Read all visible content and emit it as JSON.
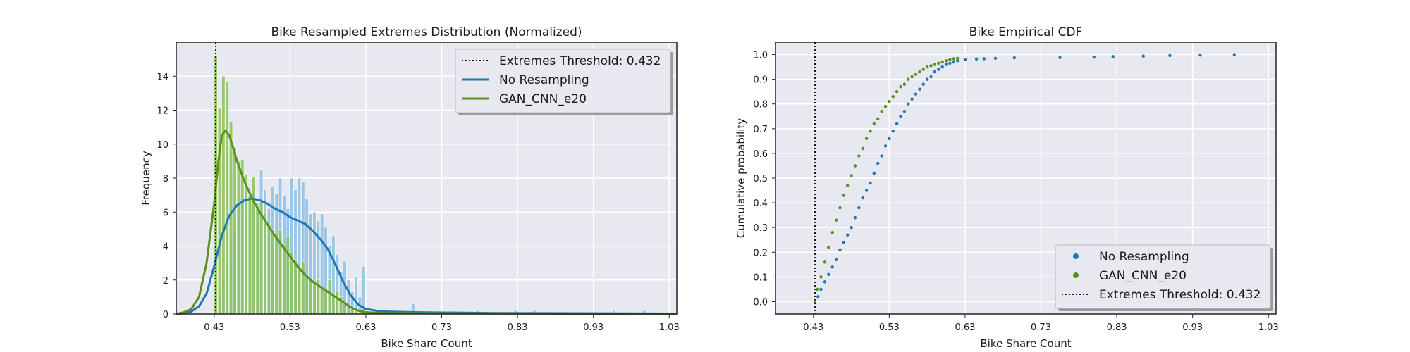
{
  "colors": {
    "background": "#ffffff",
    "plot_background": "#e8e8f0",
    "grid": "#ffffff",
    "no_resampling": "#1f77b4",
    "no_resampling_bar": "#86bde6",
    "gan": "#5e8f1c",
    "gan_bar": "#8cc25a",
    "threshold": "#111111"
  },
  "chart_data": [
    {
      "type": "bar",
      "title": "Bike Resampled Extremes Distribution (Normalized)",
      "xlabel": "Bike Share Count",
      "ylabel": "Frequency",
      "xlim": [
        0.38,
        1.04
      ],
      "ylim": [
        0,
        16
      ],
      "xticks": [
        "0.43",
        "0.53",
        "0.63",
        "0.73",
        "0.83",
        "0.93",
        "1.03"
      ],
      "yticks": [
        "0",
        "2",
        "4",
        "6",
        "8",
        "10",
        "12",
        "14"
      ],
      "grid": true,
      "legend_position": "top-right",
      "legend": [
        {
          "label": "Extremes Threshold: 0.432",
          "style": "dotted",
          "color": "#111111"
        },
        {
          "label": "No Resampling",
          "style": "line",
          "color": "#1f77b4"
        },
        {
          "label": "GAN_CNN_e20",
          "style": "line",
          "color": "#5e8f1c"
        }
      ],
      "threshold": 0.432,
      "series": [
        {
          "name": "No Resampling",
          "kind": "histogram",
          "bin_width": 0.005,
          "x": [
            0.435,
            0.44,
            0.445,
            0.45,
            0.455,
            0.46,
            0.465,
            0.47,
            0.475,
            0.48,
            0.485,
            0.49,
            0.495,
            0.5,
            0.505,
            0.51,
            0.515,
            0.52,
            0.525,
            0.53,
            0.535,
            0.54,
            0.545,
            0.55,
            0.555,
            0.56,
            0.565,
            0.57,
            0.575,
            0.58,
            0.585,
            0.59,
            0.595,
            0.6,
            0.605,
            0.61,
            0.615,
            0.62,
            0.625,
            0.63,
            0.69,
            0.775,
            0.825,
            0.85,
            0.955,
            0.995
          ],
          "values": [
            1.0,
            2.0,
            3.0,
            4.3,
            5.0,
            6.2,
            6.8,
            6.0,
            7.0,
            7.2,
            6.5,
            8.5,
            7.3,
            6.2,
            7.5,
            7.1,
            8.0,
            7.0,
            6.2,
            8.0,
            7.3,
            8.0,
            7.8,
            6.8,
            5.9,
            6.0,
            5.5,
            5.9,
            5.1,
            4.0,
            4.6,
            3.5,
            2.5,
            3.1,
            2.0,
            1.3,
            2.2,
            1.0,
            2.8,
            0.2,
            0.6,
            0.2,
            0.2,
            0.2,
            0.2,
            0.2
          ]
        },
        {
          "name": "GAN_CNN_e20",
          "kind": "histogram",
          "bin_width": 0.005,
          "x": [
            0.43,
            0.435,
            0.44,
            0.445,
            0.45,
            0.455,
            0.46,
            0.465,
            0.47,
            0.475,
            0.48,
            0.485,
            0.49,
            0.495,
            0.5,
            0.505,
            0.51,
            0.515,
            0.52,
            0.525,
            0.53,
            0.535,
            0.54,
            0.545,
            0.55,
            0.555,
            0.56,
            0.565,
            0.57,
            0.575,
            0.58,
            0.585,
            0.59,
            0.595,
            0.6,
            0.605,
            0.61,
            0.615,
            0.62
          ],
          "values": [
            15.2,
            12.1,
            14.0,
            13.7,
            11.3,
            9.8,
            9.0,
            9.1,
            8.2,
            7.0,
            8.1,
            6.4,
            6.6,
            6.0,
            5.3,
            5.0,
            4.7,
            5.0,
            4.1,
            4.6,
            3.6,
            3.2,
            2.6,
            3.1,
            2.2,
            2.0,
            1.8,
            2.0,
            1.6,
            1.4,
            2.0,
            1.1,
            1.4,
            1.0,
            0.6,
            0.5,
            0.3,
            0.2,
            0.1
          ]
        },
        {
          "name": "No Resampling",
          "kind": "kde",
          "x": [
            0.38,
            0.39,
            0.4,
            0.41,
            0.42,
            0.43,
            0.44,
            0.45,
            0.46,
            0.47,
            0.48,
            0.49,
            0.5,
            0.51,
            0.52,
            0.53,
            0.54,
            0.55,
            0.56,
            0.57,
            0.58,
            0.59,
            0.6,
            0.61,
            0.62,
            0.63,
            0.65,
            0.7,
            0.8,
            0.9,
            1.04
          ],
          "values": [
            0.0,
            0.05,
            0.15,
            0.45,
            1.2,
            2.8,
            4.6,
            5.8,
            6.4,
            6.7,
            6.8,
            6.7,
            6.5,
            6.2,
            6.0,
            5.7,
            5.5,
            5.3,
            4.9,
            4.4,
            3.8,
            2.9,
            1.9,
            1.1,
            0.55,
            0.3,
            0.15,
            0.1,
            0.05,
            0.04,
            0.02
          ]
        },
        {
          "name": "GAN_CNN_e20",
          "kind": "kde",
          "x": [
            0.38,
            0.39,
            0.4,
            0.41,
            0.42,
            0.43,
            0.435,
            0.44,
            0.445,
            0.45,
            0.455,
            0.46,
            0.47,
            0.48,
            0.49,
            0.5,
            0.51,
            0.52,
            0.53,
            0.54,
            0.55,
            0.56,
            0.57,
            0.58,
            0.59,
            0.6,
            0.61,
            0.62,
            0.63,
            0.65,
            1.04
          ],
          "values": [
            0.0,
            0.1,
            0.3,
            1.0,
            3.0,
            6.5,
            8.8,
            10.5,
            10.8,
            10.5,
            9.8,
            9.0,
            7.8,
            6.8,
            6.0,
            5.3,
            4.6,
            4.0,
            3.4,
            2.8,
            2.3,
            1.9,
            1.6,
            1.3,
            1.0,
            0.7,
            0.4,
            0.2,
            0.1,
            0.05,
            0.0
          ]
        }
      ]
    },
    {
      "type": "scatter",
      "title": "Bike Empirical CDF",
      "xlabel": "Bike Share Count",
      "ylabel": "Cumulative probability",
      "xlim": [
        0.38,
        1.04
      ],
      "ylim": [
        -0.05,
        1.05
      ],
      "xticks": [
        "0.43",
        "0.53",
        "0.63",
        "0.73",
        "0.83",
        "0.93",
        "1.03"
      ],
      "yticks": [
        "0.0",
        "0.1",
        "0.2",
        "0.3",
        "0.4",
        "0.5",
        "0.6",
        "0.7",
        "0.8",
        "0.9",
        "1.0"
      ],
      "grid": true,
      "legend_position": "bottom-right",
      "legend": [
        {
          "label": "No Resampling",
          "style": "dot",
          "color": "#1f77b4"
        },
        {
          "label": "GAN_CNN_e20",
          "style": "dot",
          "color": "#5e8f1c"
        },
        {
          "label": "Extremes Threshold: 0.432",
          "style": "dotted",
          "color": "#111111"
        }
      ],
      "threshold": 0.432,
      "series": [
        {
          "name": "No Resampling",
          "x": [
            0.432,
            0.436,
            0.44,
            0.445,
            0.45,
            0.455,
            0.46,
            0.465,
            0.47,
            0.475,
            0.48,
            0.485,
            0.49,
            0.495,
            0.5,
            0.505,
            0.51,
            0.515,
            0.52,
            0.525,
            0.53,
            0.535,
            0.54,
            0.545,
            0.55,
            0.555,
            0.56,
            0.565,
            0.57,
            0.575,
            0.58,
            0.585,
            0.59,
            0.595,
            0.6,
            0.605,
            0.61,
            0.615,
            0.62,
            0.63,
            0.645,
            0.655,
            0.67,
            0.695,
            0.755,
            0.8,
            0.825,
            0.865,
            0.9,
            0.94,
            0.985
          ],
          "values": [
            0.0,
            0.02,
            0.05,
            0.08,
            0.11,
            0.14,
            0.17,
            0.21,
            0.24,
            0.27,
            0.3,
            0.34,
            0.38,
            0.42,
            0.45,
            0.48,
            0.52,
            0.56,
            0.59,
            0.63,
            0.66,
            0.69,
            0.72,
            0.75,
            0.77,
            0.8,
            0.82,
            0.84,
            0.86,
            0.88,
            0.9,
            0.91,
            0.93,
            0.94,
            0.95,
            0.96,
            0.965,
            0.97,
            0.975,
            0.98,
            0.982,
            0.983,
            0.985,
            0.987,
            0.988,
            0.99,
            0.992,
            0.994,
            0.996,
            0.998,
            1.0
          ]
        },
        {
          "name": "GAN_CNN_e20",
          "x": [
            0.432,
            0.435,
            0.44,
            0.445,
            0.45,
            0.455,
            0.46,
            0.465,
            0.47,
            0.475,
            0.48,
            0.485,
            0.49,
            0.495,
            0.5,
            0.505,
            0.51,
            0.515,
            0.52,
            0.525,
            0.53,
            0.535,
            0.54,
            0.545,
            0.55,
            0.555,
            0.56,
            0.565,
            0.57,
            0.575,
            0.58,
            0.585,
            0.59,
            0.595,
            0.6,
            0.605,
            0.61,
            0.615,
            0.62
          ],
          "values": [
            0.0,
            0.05,
            0.1,
            0.16,
            0.22,
            0.28,
            0.33,
            0.38,
            0.43,
            0.47,
            0.51,
            0.55,
            0.59,
            0.62,
            0.66,
            0.69,
            0.72,
            0.74,
            0.77,
            0.79,
            0.81,
            0.83,
            0.85,
            0.87,
            0.88,
            0.9,
            0.91,
            0.92,
            0.93,
            0.94,
            0.95,
            0.955,
            0.96,
            0.965,
            0.97,
            0.975,
            0.98,
            0.983,
            0.985
          ]
        }
      ]
    }
  ]
}
